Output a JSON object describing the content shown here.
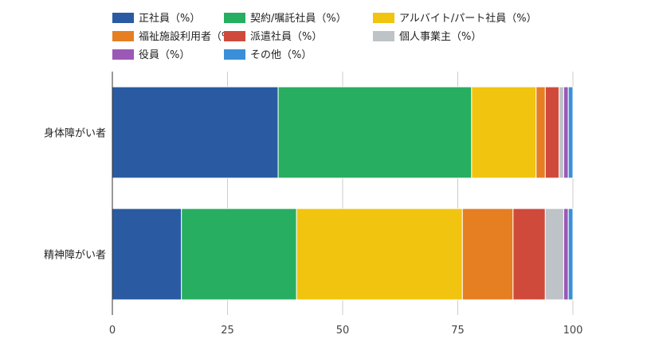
{
  "chart_data": {
    "type": "bar",
    "orientation": "horizontal",
    "stacked": true,
    "categories": [
      "身体障がい者",
      "精神障がい者"
    ],
    "series": [
      {
        "name": "正社員（%）",
        "color": "#2a5ba2",
        "values": [
          36,
          15
        ]
      },
      {
        "name": "契約/嘱託社員（%）",
        "color": "#27ae60",
        "values": [
          42,
          25
        ]
      },
      {
        "name": "アルバイト/パート社員（%）",
        "color": "#f1c40f",
        "values": [
          14,
          36
        ]
      },
      {
        "name": "福祉施設利用者（%）",
        "color": "#e67e22",
        "values": [
          2,
          11
        ]
      },
      {
        "name": "派遣社員（%）",
        "color": "#cf4a3b",
        "values": [
          3,
          7
        ]
      },
      {
        "name": "個人事業主（%）",
        "color": "#bdc3c7",
        "values": [
          1,
          4
        ]
      },
      {
        "name": "役員（%）",
        "color": "#9b59b6",
        "values": [
          1,
          1
        ]
      },
      {
        "name": "その他（%）",
        "color": "#3a8fd9",
        "values": [
          1,
          1
        ]
      }
    ],
    "x_ticks": [
      "0",
      "25",
      "50",
      "75",
      "100"
    ],
    "xlim": [
      0,
      100
    ],
    "grid": true,
    "legend_position": "top-left"
  }
}
